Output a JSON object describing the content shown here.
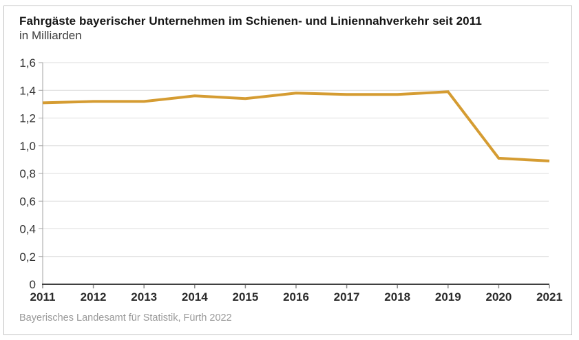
{
  "chart_data": {
    "type": "line",
    "title": "Fahrgäste bayerischer Unternehmen im Schienen- und Liniennahverkehr seit 2011",
    "subtitle": "in Milliarden",
    "source": "Bayerisches Landesamt für Statistik, Fürth 2022",
    "categories": [
      "2011",
      "2012",
      "2013",
      "2014",
      "2015",
      "2016",
      "2017",
      "2018",
      "2019",
      "2020",
      "2021"
    ],
    "series": [
      {
        "name": "Fahrgäste in Milliarden",
        "values": [
          1.31,
          1.32,
          1.32,
          1.36,
          1.34,
          1.38,
          1.37,
          1.37,
          1.39,
          0.91,
          0.89
        ],
        "color": "#D59C32"
      }
    ],
    "ylim": [
      0,
      1.6
    ],
    "y_ticks": [
      {
        "v": 0,
        "label": "0"
      },
      {
        "v": 0.2,
        "label": "0,2"
      },
      {
        "v": 0.4,
        "label": "0,4"
      },
      {
        "v": 0.6,
        "label": "0,6"
      },
      {
        "v": 0.8,
        "label": "0,8"
      },
      {
        "v": 1.0,
        "label": "1,0"
      },
      {
        "v": 1.2,
        "label": "1,2"
      },
      {
        "v": 1.4,
        "label": "1,4"
      },
      {
        "v": 1.6,
        "label": "1,6"
      }
    ],
    "grid": true,
    "legend": "none",
    "colors": {
      "line": "#D59C32",
      "grid": "#dcdcdc",
      "x_axis": "#404040",
      "y_axis": "#a3a3a3",
      "x_tick": "#8a8a8a",
      "x_label": "#2b2b2b",
      "y_label": "#333333"
    }
  }
}
